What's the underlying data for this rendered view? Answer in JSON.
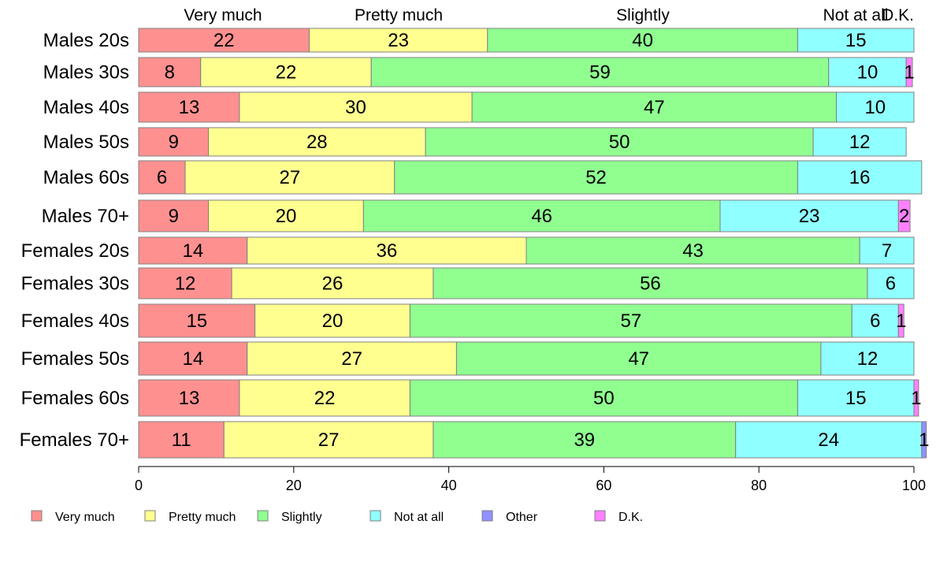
{
  "chart_data": {
    "type": "bar",
    "orientation": "horizontal",
    "stacked": true,
    "categories": [
      "Males 20s",
      "Males 30s",
      "Males 40s",
      "Males 50s",
      "Males 60s",
      "Males 70+",
      "Females 20s",
      "Females 30s",
      "Females 40s",
      "Females 50s",
      "Females 60s",
      "Females 70+"
    ],
    "series": [
      {
        "name": "Very much",
        "color": "#ff9090",
        "values": [
          22,
          8,
          13,
          9,
          6,
          9,
          14,
          12,
          15,
          14,
          13,
          11
        ],
        "labels": [
          "22",
          "8",
          "13",
          "9",
          "6",
          "9",
          "14",
          "12",
          "15",
          "14",
          "13",
          "11"
        ]
      },
      {
        "name": "Pretty much",
        "color": "#ffff90",
        "values": [
          23,
          22,
          30,
          28,
          27,
          20,
          36,
          26,
          20,
          27,
          22,
          27
        ],
        "labels": [
          "23",
          "22",
          "30",
          "28",
          "27",
          "20",
          "36",
          "26",
          "20",
          "27",
          "22",
          "27"
        ]
      },
      {
        "name": "Slightly",
        "color": "#90ff90",
        "values": [
          40,
          59,
          47,
          50,
          52,
          46,
          43,
          56,
          57,
          47,
          50,
          39
        ],
        "labels": [
          "40",
          "59",
          "47",
          "50",
          "52",
          "46",
          "43",
          "56",
          "57",
          "47",
          "50",
          "39"
        ]
      },
      {
        "name": "Not at all",
        "color": "#90ffff",
        "values": [
          15,
          10,
          10,
          12,
          16,
          23,
          7,
          6,
          6,
          12,
          15,
          24
        ],
        "labels": [
          "15",
          "10",
          "10",
          "12",
          "16",
          "23",
          "7",
          "6",
          "6",
          "12",
          "15",
          "24"
        ]
      },
      {
        "name": "Other",
        "color": "#9090ff",
        "values": [
          0,
          0,
          0,
          0,
          0,
          0,
          0,
          0,
          0,
          0,
          0,
          0.6
        ],
        "labels": [
          "",
          "",
          "",
          "",
          "",
          "",
          "",
          "",
          "",
          "",
          "",
          "1"
        ]
      },
      {
        "name": "D.K.",
        "color": "#ff80ff",
        "values": [
          0,
          0.8,
          0,
          0,
          0,
          1.5,
          0,
          0,
          0.7,
          0,
          0.6,
          0
        ],
        "labels": [
          "",
          "1",
          "",
          "",
          "",
          "2",
          "",
          "",
          "1",
          "",
          "1",
          ""
        ]
      }
    ],
    "top_labels": [
      "Very much",
      "Pretty much",
      "Slightly",
      "Not at all",
      "D.K."
    ],
    "x_ticks": [
      "0",
      "20",
      "40",
      "60",
      "80",
      "100"
    ],
    "xlim": [
      0,
      100
    ],
    "legend": [
      "Very much",
      "Pretty much",
      "Slightly",
      "Not at all",
      "Other",
      "D.K."
    ],
    "legend_position": "bottom",
    "grid": false
  }
}
